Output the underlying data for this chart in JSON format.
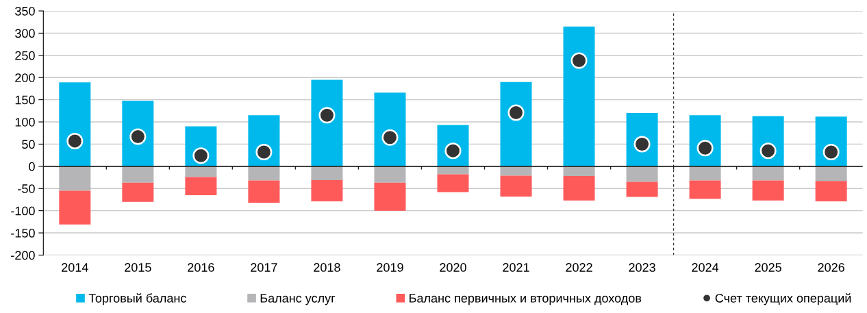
{
  "chart_data": {
    "type": "bar",
    "stacked": true,
    "categories": [
      "2014",
      "2015",
      "2016",
      "2017",
      "2018",
      "2019",
      "2020",
      "2021",
      "2022",
      "2023",
      "2024",
      "2025",
      "2026"
    ],
    "series": [
      {
        "name": "Торговый баланс",
        "color": "#00b9ec",
        "values": [
          189,
          148,
          90,
          115,
          195,
          166,
          93,
          190,
          315,
          120,
          115,
          113,
          112
        ]
      },
      {
        "name": "Баланс услуг",
        "color": "#b5b5b7",
        "values": [
          -55,
          -37,
          -24,
          -32,
          -31,
          -37,
          -18,
          -21,
          -22,
          -35,
          -32,
          -32,
          -33
        ]
      },
      {
        "name": "Баланс первичных и вторичных доходов",
        "color": "#ff5a5a",
        "values": [
          -76,
          -43,
          -41,
          -50,
          -48,
          -63,
          -40,
          -47,
          -55,
          -34,
          -41,
          -45,
          -46
        ]
      },
      {
        "name": "Счет текущих операций",
        "color": "#333333",
        "type": "scatter",
        "marker": "circle",
        "values": [
          57,
          67,
          24,
          32,
          115,
          65,
          35,
          121,
          238,
          50,
          41,
          35,
          32
        ]
      }
    ],
    "ylim": [
      -200,
      350
    ],
    "yticks": [
      -200,
      -150,
      -100,
      -50,
      0,
      50,
      100,
      150,
      200,
      250,
      300,
      350
    ],
    "grid": "y",
    "legend": "bottom"
  }
}
